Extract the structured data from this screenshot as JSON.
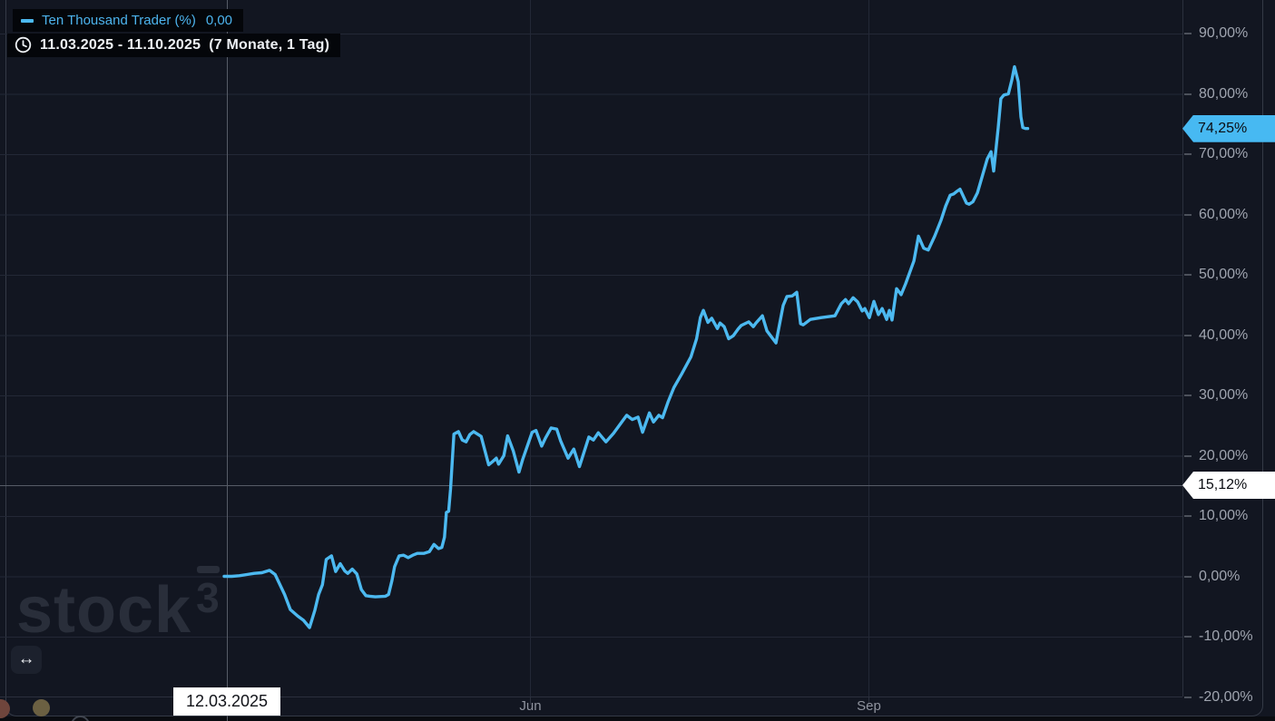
{
  "chart_data": {
    "type": "line",
    "title": "Ten Thousand Trader (%)",
    "x_axis": {
      "unit": "days since 11.03.2025",
      "range_days": [
        0,
        213
      ],
      "ticks": [
        {
          "d": 81,
          "label": "Jun"
        },
        {
          "d": 170.5,
          "label": "Sep"
        }
      ]
    },
    "y_axis": {
      "unit": "percent",
      "visible_range": [
        -20,
        95.5
      ],
      "ticks": [
        {
          "v": 90,
          "label": "90,00%"
        },
        {
          "v": 80,
          "label": "80,00%"
        },
        {
          "v": 70,
          "label": "70,00%"
        },
        {
          "v": 60,
          "label": "60,00%"
        },
        {
          "v": 50,
          "label": "50,00%"
        },
        {
          "v": 40,
          "label": "40,00%"
        },
        {
          "v": 30,
          "label": "30,00%"
        },
        {
          "v": 20,
          "label": "20,00%"
        },
        {
          "v": 10,
          "label": "10,00%"
        },
        {
          "v": 0,
          "label": "0,00%"
        },
        {
          "v": -10,
          "label": "-10,00%"
        },
        {
          "v": -20,
          "label": "-20,00%"
        }
      ]
    },
    "grid": true,
    "legend_position": "top-left",
    "series": [
      {
        "name": "Ten Thousand Trader (%)",
        "color": "#4cb9f0",
        "points": [
          [
            0,
            0
          ],
          [
            2,
            0
          ],
          [
            4,
            0.1
          ],
          [
            6,
            0.3
          ],
          [
            8,
            0.5
          ],
          [
            10,
            0.6
          ],
          [
            12,
            1
          ],
          [
            13.5,
            0.3
          ],
          [
            16,
            -3
          ],
          [
            17.5,
            -5.5
          ],
          [
            19.5,
            -6.6
          ],
          [
            21,
            -7.3
          ],
          [
            22.6,
            -8.5
          ],
          [
            24,
            -5.6
          ],
          [
            25,
            -3
          ],
          [
            26,
            -1.4
          ],
          [
            27,
            2.8
          ],
          [
            28.4,
            3.4
          ],
          [
            29.5,
            0.8
          ],
          [
            30.7,
            2.1
          ],
          [
            31.9,
            0.9
          ],
          [
            32.7,
            0.5
          ],
          [
            33.9,
            1.2
          ],
          [
            35.1,
            0.4
          ],
          [
            36.3,
            -2.2
          ],
          [
            37.5,
            -3.2
          ],
          [
            38.5,
            -3.3
          ],
          [
            40,
            -3.4
          ],
          [
            42.7,
            -3.3
          ],
          [
            43.5,
            -3
          ],
          [
            44.4,
            -0.7
          ],
          [
            45.1,
            1.6
          ],
          [
            46.3,
            3.4
          ],
          [
            47.5,
            3.5
          ],
          [
            48.7,
            3.1
          ],
          [
            49.9,
            3.5
          ],
          [
            51.1,
            3.8
          ],
          [
            52.8,
            3.8
          ],
          [
            54.3,
            4.1
          ],
          [
            55.5,
            5.3
          ],
          [
            56.7,
            4.6
          ],
          [
            57.6,
            4.8
          ],
          [
            58.3,
            6.5
          ],
          [
            58.8,
            10.6
          ],
          [
            59.4,
            10.8
          ],
          [
            59.9,
            14.5
          ],
          [
            60.8,
            23.6
          ],
          [
            62,
            24
          ],
          [
            63,
            22.6
          ],
          [
            64,
            22.3
          ],
          [
            65,
            23.5
          ],
          [
            66,
            24
          ],
          [
            67,
            23.6
          ],
          [
            68,
            23.2
          ],
          [
            70,
            18.5
          ],
          [
            71,
            19
          ],
          [
            72,
            19.6
          ],
          [
            72.6,
            18.6
          ],
          [
            74,
            20
          ],
          [
            75,
            23.3
          ],
          [
            76.5,
            20.8
          ],
          [
            78,
            17.3
          ],
          [
            79,
            19.4
          ],
          [
            81.5,
            23.9
          ],
          [
            82.5,
            24.2
          ],
          [
            84,
            21.6
          ],
          [
            85,
            22.9
          ],
          [
            86.5,
            24.6
          ],
          [
            88,
            24.4
          ],
          [
            89,
            22.5
          ],
          [
            91,
            19.6
          ],
          [
            92.5,
            21.1
          ],
          [
            94,
            18.2
          ],
          [
            96.5,
            23.1
          ],
          [
            97.7,
            22.6
          ],
          [
            99,
            23.8
          ],
          [
            101,
            22.3
          ],
          [
            103,
            23.7
          ],
          [
            106.5,
            26.7
          ],
          [
            108,
            26
          ],
          [
            109.5,
            26.4
          ],
          [
            110.7,
            23.9
          ],
          [
            112.5,
            27.1
          ],
          [
            113.6,
            25.6
          ],
          [
            115,
            26.7
          ],
          [
            116,
            26.3
          ],
          [
            117.5,
            29
          ],
          [
            119,
            31.3
          ],
          [
            121,
            33.5
          ],
          [
            123.5,
            36.4
          ],
          [
            125,
            39.4
          ],
          [
            126,
            42.9
          ],
          [
            126.8,
            44.1
          ],
          [
            128,
            42.1
          ],
          [
            129,
            42.8
          ],
          [
            130.5,
            41.1
          ],
          [
            131.2,
            42
          ],
          [
            132.3,
            41.4
          ],
          [
            133.5,
            39.4
          ],
          [
            134.7,
            39.9
          ],
          [
            136,
            41
          ],
          [
            136.8,
            41.6
          ],
          [
            138.8,
            42.2
          ],
          [
            140,
            41.4
          ],
          [
            140.7,
            42
          ],
          [
            142.4,
            43.2
          ],
          [
            143.6,
            40.7
          ],
          [
            146,
            38.7
          ],
          [
            147.9,
            44.9
          ],
          [
            148.9,
            46.4
          ],
          [
            150.3,
            46.5
          ],
          [
            151.5,
            47.1
          ],
          [
            152.5,
            41.9
          ],
          [
            153.2,
            41.7
          ],
          [
            155.1,
            42.6
          ],
          [
            158,
            42.9
          ],
          [
            161.6,
            43.2
          ],
          [
            163.3,
            45.2
          ],
          [
            164.4,
            45.9
          ],
          [
            165.2,
            45.2
          ],
          [
            166.4,
            46.2
          ],
          [
            167.6,
            45.5
          ],
          [
            168.8,
            44
          ],
          [
            169.5,
            44.4
          ],
          [
            170.7,
            42.9
          ],
          [
            171.9,
            45.6
          ],
          [
            173.1,
            43.4
          ],
          [
            174.1,
            44.4
          ],
          [
            175.3,
            42.6
          ],
          [
            176,
            44.1
          ],
          [
            176.7,
            42.5
          ],
          [
            177.9,
            47.7
          ],
          [
            179.1,
            46.7
          ],
          [
            180.3,
            48.5
          ],
          [
            182.5,
            52.3
          ],
          [
            183.7,
            56.4
          ],
          [
            185.1,
            54.4
          ],
          [
            186.3,
            54.1
          ],
          [
            188,
            56.4
          ],
          [
            189.7,
            59.1
          ],
          [
            190.9,
            61.4
          ],
          [
            192.1,
            63.2
          ],
          [
            193,
            63.4
          ],
          [
            194,
            63.9
          ],
          [
            194.7,
            64.2
          ],
          [
            196.4,
            61.9
          ],
          [
            197.1,
            61.7
          ],
          [
            198.1,
            62.1
          ],
          [
            199.3,
            63.6
          ],
          [
            200.7,
            66.6
          ],
          [
            201.9,
            69.2
          ],
          [
            202.9,
            70.4
          ],
          [
            203.6,
            67.2
          ],
          [
            204.8,
            74.4
          ],
          [
            205.5,
            79.2
          ],
          [
            206.3,
            79.8
          ],
          [
            207.5,
            80
          ],
          [
            208.4,
            82.3
          ],
          [
            209.1,
            84.5
          ],
          [
            210.1,
            82
          ],
          [
            210.8,
            76.2
          ],
          [
            211.3,
            74.4
          ],
          [
            212,
            74.25
          ],
          [
            212.6,
            74.25
          ]
        ]
      }
    ],
    "current_value": 74.25,
    "current_value_label": "74,25%"
  },
  "legend": {
    "series_row": {
      "label": "Ten Thousand Trader (%)",
      "value": "0,00",
      "marker_color": "#4cb9f0"
    },
    "range_row": {
      "range": "11.03.2025 - 11.10.2025",
      "duration": "(7 Monate, 1 Tag)"
    }
  },
  "crosshair": {
    "date_label": "12.03.2025",
    "d": 0.72,
    "price_label": "15,12%",
    "price_value": 15.12
  },
  "watermark": {
    "text": "stock",
    "sup": "3"
  },
  "pan_button": {
    "icon": "↔"
  },
  "colors": {
    "background": "#121621",
    "grid": "#232836",
    "axis_text": "#a0a5b0",
    "series_line": "#4cb9f0",
    "current_tag_bg": "#47b9f2",
    "crosshair_tag_bg": "#ffffff",
    "crosshair_line": "#575c67"
  }
}
